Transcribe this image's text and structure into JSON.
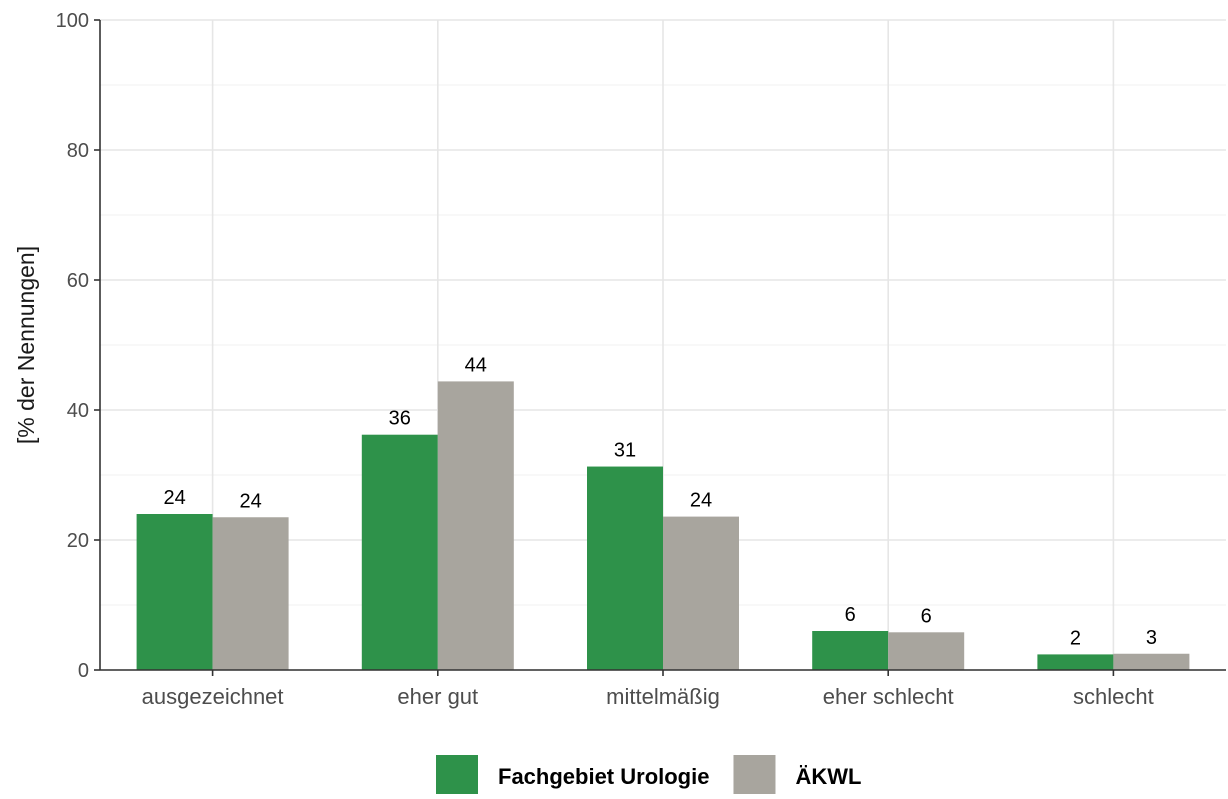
{
  "chart_data": {
    "type": "bar",
    "title": "",
    "xlabel": "",
    "ylabel": "[% der Nennungen]",
    "ylim": [
      0,
      100
    ],
    "yticks": [
      0,
      20,
      40,
      60,
      80,
      100
    ],
    "grid": true,
    "legend_position": "bottom",
    "categories": [
      "ausgezeichnet",
      "eher gut",
      "mittelmäßig",
      "eher schlecht",
      "schlecht"
    ],
    "series": [
      {
        "name": "Fachgebiet Urologie",
        "color": "#2e924a",
        "values": [
          24.0,
          36.2,
          31.3,
          6.0,
          2.4
        ],
        "labels": [
          "24",
          "36",
          "31",
          "6",
          "2"
        ]
      },
      {
        "name": "ÄKWL",
        "color": "#a8a59e",
        "values": [
          23.5,
          44.4,
          23.6,
          5.8,
          2.5
        ],
        "labels": [
          "24",
          "44",
          "24",
          "6",
          "3"
        ]
      }
    ]
  }
}
